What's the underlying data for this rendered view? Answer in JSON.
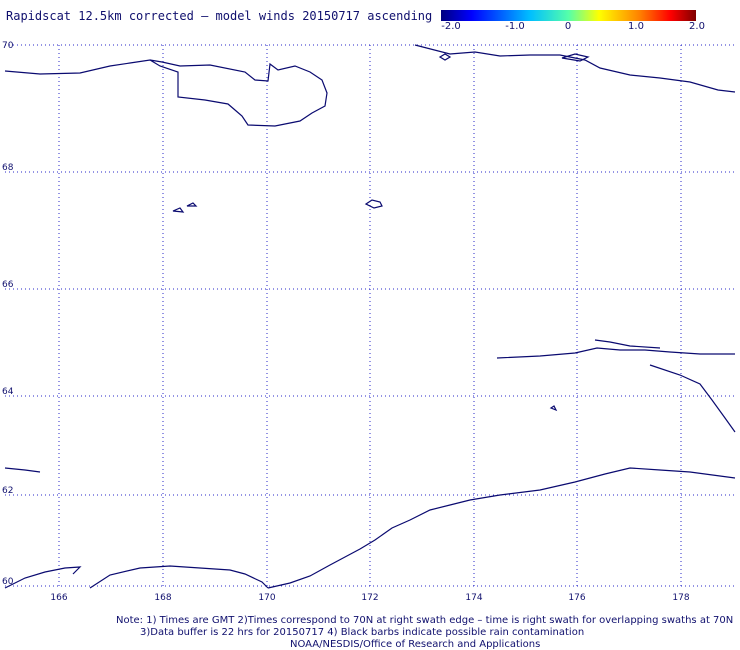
{
  "title": "Rapidscat 12.5km corrected – model winds 20150717 ascending",
  "colorbar": {
    "ticks": [
      "-2.0",
      "-1.0",
      "0",
      "1.0",
      "2.0"
    ],
    "colors": [
      "#00007f",
      "#0000ff",
      "#00bfff",
      "#55ffaa",
      "#ffff00",
      "#ff8000",
      "#ff0000",
      "#7f0000"
    ]
  },
  "map": {
    "lat_labels": [
      "70",
      "68",
      "66",
      "64",
      "62",
      "60"
    ],
    "lon_labels": [
      "166",
      "168",
      "170",
      "172",
      "174",
      "176",
      "178"
    ],
    "lon_range": [
      165,
      179
    ],
    "lat_range": [
      60,
      70
    ],
    "coast_color": "#0a0a70",
    "grid_color": "#2a2ac8"
  },
  "notes": {
    "line1": "Note: 1) Times are GMT 2)Times correspond to 70N at right swath edge – time is right swath for overlapping swaths at 70N",
    "line2": "3)Data buffer is 22 hrs for 20150717 4) Black barbs indicate possible rain contamination",
    "line3": "NOAA/NESDIS/Office of Research and Applications"
  }
}
